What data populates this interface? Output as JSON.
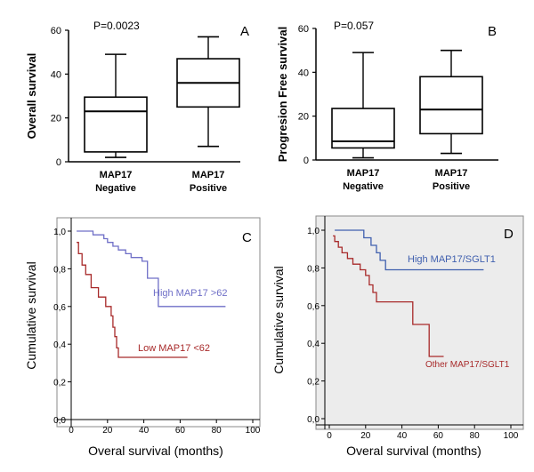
{
  "chart_data": [
    {
      "panel": "A",
      "type": "box",
      "annotation": "P=0.0023",
      "ylabel": "Overall survival",
      "ylim": [
        0,
        60
      ],
      "yticks": [
        "0",
        "20",
        "40",
        "60"
      ],
      "groups": [
        {
          "line1": "MAP17",
          "line2": "Negative",
          "whisker_low": 2,
          "q1": 4.5,
          "median": 23,
          "q3": 29.5,
          "whisker_high": 49
        },
        {
          "line1": "MAP17",
          "line2": "Positive",
          "whisker_low": 7,
          "q1": 25,
          "median": 36,
          "q3": 47,
          "whisker_high": 57
        }
      ]
    },
    {
      "panel": "B",
      "type": "box",
      "annotation": "P=0.057",
      "ylabel": "Progresion Free survival",
      "ylim": [
        0,
        60
      ],
      "yticks": [
        "0",
        "20",
        "40",
        "60"
      ],
      "groups": [
        {
          "line1": "MAP17",
          "line2": "Negative",
          "whisker_low": 1,
          "q1": 5.5,
          "median": 8.5,
          "q3": 23.5,
          "whisker_high": 49
        },
        {
          "line1": "MAP17",
          "line2": "Positive",
          "whisker_low": 3,
          "q1": 12,
          "median": 23,
          "q3": 38,
          "whisker_high": 50
        }
      ]
    },
    {
      "panel": "C",
      "type": "line",
      "step": true,
      "xlabel": "Overal survival (months)",
      "ylabel": "Cumulative survival",
      "xlim": [
        0,
        100
      ],
      "ylim": [
        0,
        1
      ],
      "xticks": [
        "0",
        "20",
        "40",
        "60",
        "80",
        "100"
      ],
      "yticks": [
        "0,0",
        "0,2",
        "0,4",
        "0,6",
        "0,8",
        "1,0"
      ],
      "series": [
        {
          "name": "High MAP17 >62",
          "color": "#6f6fc7",
          "points": [
            [
              3,
              1.0
            ],
            [
              12,
              1.0
            ],
            [
              12,
              0.98
            ],
            [
              18,
              0.98
            ],
            [
              18,
              0.96
            ],
            [
              20,
              0.96
            ],
            [
              20,
              0.94
            ],
            [
              23,
              0.94
            ],
            [
              23,
              0.92
            ],
            [
              26,
              0.92
            ],
            [
              26,
              0.9
            ],
            [
              30,
              0.9
            ],
            [
              30,
              0.88
            ],
            [
              33,
              0.88
            ],
            [
              33,
              0.86
            ],
            [
              39,
              0.86
            ],
            [
              39,
              0.84
            ],
            [
              42,
              0.84
            ],
            [
              42,
              0.75
            ],
            [
              48,
              0.75
            ],
            [
              48,
              0.6
            ],
            [
              85,
              0.6
            ]
          ]
        },
        {
          "name": "Low MAP17 <62",
          "color": "#a82a2a",
          "points": [
            [
              3,
              0.94
            ],
            [
              4,
              0.94
            ],
            [
              4,
              0.88
            ],
            [
              6,
              0.88
            ],
            [
              6,
              0.82
            ],
            [
              8,
              0.82
            ],
            [
              8,
              0.77
            ],
            [
              11,
              0.77
            ],
            [
              11,
              0.7
            ],
            [
              15,
              0.7
            ],
            [
              15,
              0.65
            ],
            [
              19,
              0.65
            ],
            [
              19,
              0.6
            ],
            [
              22,
              0.6
            ],
            [
              22,
              0.55
            ],
            [
              23,
              0.55
            ],
            [
              23,
              0.49
            ],
            [
              24,
              0.49
            ],
            [
              24,
              0.44
            ],
            [
              25,
              0.44
            ],
            [
              25,
              0.38
            ],
            [
              26,
              0.38
            ],
            [
              26,
              0.33
            ],
            [
              64,
              0.33
            ]
          ]
        }
      ]
    },
    {
      "panel": "D",
      "type": "line",
      "step": true,
      "background": "#ececec",
      "xlabel": "Overal survival (months)",
      "ylabel": "Cumulative survival",
      "xlim": [
        0,
        100
      ],
      "ylim": [
        0,
        1
      ],
      "xticks": [
        "0",
        "20",
        "40",
        "60",
        "80",
        "100"
      ],
      "yticks": [
        "0,0",
        "0,2",
        "0,4",
        "0,6",
        "0,8",
        "1,0"
      ],
      "series": [
        {
          "name": "High MAP17/SGLT1",
          "color": "#3f5fae",
          "points": [
            [
              3,
              1.0
            ],
            [
              19,
              1.0
            ],
            [
              19,
              0.96
            ],
            [
              23,
              0.96
            ],
            [
              23,
              0.92
            ],
            [
              26,
              0.92
            ],
            [
              26,
              0.88
            ],
            [
              28,
              0.88
            ],
            [
              28,
              0.84
            ],
            [
              31,
              0.84
            ],
            [
              31,
              0.79
            ],
            [
              85,
              0.79
            ]
          ]
        },
        {
          "name": "Other MAP17/SGLT1",
          "color": "#a82a2a",
          "points": [
            [
              2,
              0.97
            ],
            [
              3,
              0.97
            ],
            [
              3,
              0.94
            ],
            [
              5,
              0.94
            ],
            [
              5,
              0.91
            ],
            [
              7,
              0.91
            ],
            [
              7,
              0.88
            ],
            [
              10,
              0.88
            ],
            [
              10,
              0.85
            ],
            [
              13,
              0.85
            ],
            [
              13,
              0.82
            ],
            [
              17,
              0.82
            ],
            [
              17,
              0.79
            ],
            [
              20,
              0.79
            ],
            [
              20,
              0.76
            ],
            [
              22,
              0.76
            ],
            [
              22,
              0.71
            ],
            [
              24,
              0.71
            ],
            [
              24,
              0.67
            ],
            [
              26,
              0.67
            ],
            [
              26,
              0.62
            ],
            [
              46,
              0.62
            ],
            [
              46,
              0.5
            ],
            [
              55,
              0.5
            ],
            [
              55,
              0.33
            ],
            [
              63,
              0.33
            ]
          ]
        }
      ]
    }
  ]
}
